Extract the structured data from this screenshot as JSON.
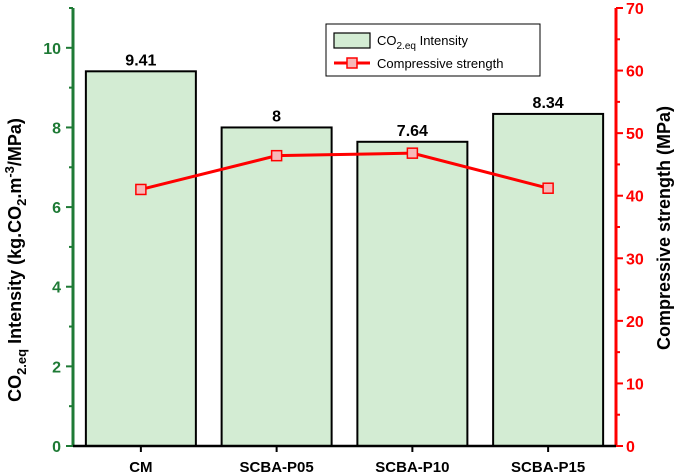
{
  "chart_data": {
    "type": "bar",
    "categories": [
      "CM",
      "SCBA-P05",
      "SCBA-P10",
      "SCBA-P15"
    ],
    "series": [
      {
        "name": "CO2.eq Intensity",
        "axis": "left",
        "kind": "bar",
        "values": [
          9.41,
          8,
          7.64,
          8.34
        ],
        "data_labels": [
          "9.41",
          "8",
          "7.64",
          "8.34"
        ]
      },
      {
        "name": "Compressive strength",
        "axis": "right",
        "kind": "line",
        "values": [
          41.0,
          46.4,
          46.8,
          41.2
        ]
      }
    ],
    "ylabel_left": {
      "pre": "CO",
      "sub": "2.eq",
      "mid": " Intensity (kg.CO",
      "sub2": "2",
      "mid2": ".m",
      "sup": "-3",
      "post": "/MPa)"
    },
    "ylabel_right": "Compressive strength (MPa)",
    "ylim_left": [
      0,
      11
    ],
    "ylim_right": [
      0,
      70
    ],
    "yticks_left": [
      "0",
      "2",
      "4",
      "6",
      "8",
      "10"
    ],
    "yticks_right": [
      "0",
      "10",
      "20",
      "30",
      "40",
      "50",
      "60",
      "70"
    ],
    "legend": {
      "placement": "top-right",
      "bar_entry": {
        "pre": "CO",
        "sub": "2.eq",
        "post": " Intensity"
      },
      "line_entry": "Compressive strength"
    },
    "colors": {
      "bar_fill": "#d3ecd3",
      "bar_edge": "#000000",
      "line": "#ff0000",
      "marker_fill": "#f7b8b8",
      "left_axis": "#1e7a35",
      "right_axis": "#ff0000"
    },
    "grid": false
  }
}
